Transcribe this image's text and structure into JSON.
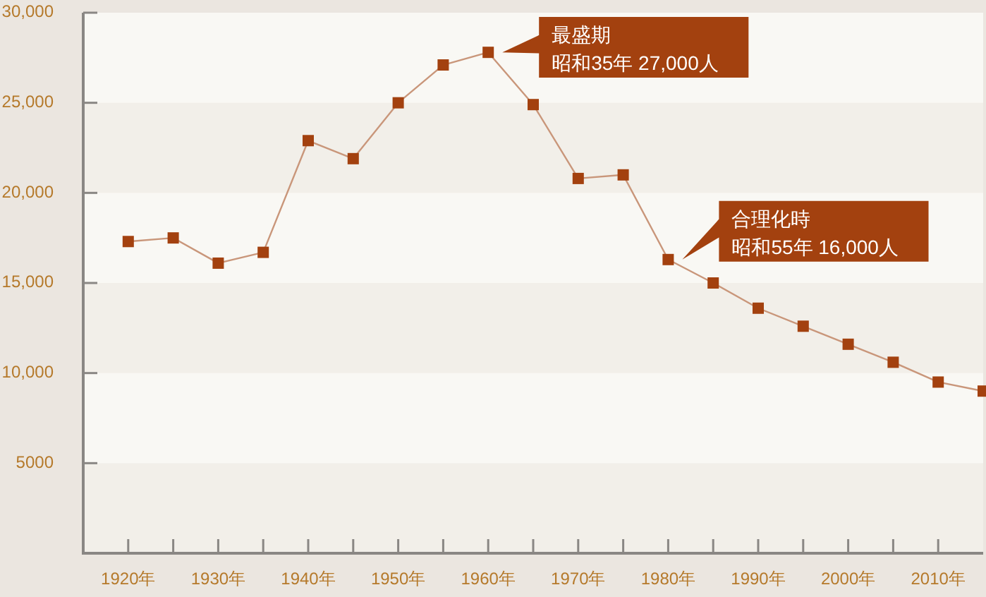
{
  "chart_data": {
    "type": "line",
    "x": [
      1920,
      1925,
      1930,
      1935,
      1940,
      1945,
      1950,
      1955,
      1960,
      1965,
      1970,
      1975,
      1980,
      1985,
      1990,
      1995,
      2000,
      2005,
      2010,
      2015
    ],
    "series": [
      {
        "color": "#a3410f",
        "values": [
          17300,
          17500,
          16100,
          16700,
          22900,
          21900,
          25000,
          27100,
          27800,
          24900,
          20800,
          21000,
          16300,
          15000,
          13600,
          12600,
          11600,
          10600,
          9500,
          9000
        ]
      }
    ],
    "xlim": [
      1915,
      2015
    ],
    "xticks": [
      {
        "value": 1920,
        "label": "1920年"
      },
      {
        "value": 1925,
        "label": null
      },
      {
        "value": 1930,
        "label": "1930年"
      },
      {
        "value": 1935,
        "label": null
      },
      {
        "value": 1940,
        "label": "1940年"
      },
      {
        "value": 1945,
        "label": null
      },
      {
        "value": 1950,
        "label": "1950年"
      },
      {
        "value": 1955,
        "label": null
      },
      {
        "value": 1960,
        "label": "1960年"
      },
      {
        "value": 1965,
        "label": null
      },
      {
        "value": 1970,
        "label": "1970年"
      },
      {
        "value": 1975,
        "label": null
      },
      {
        "value": 1980,
        "label": "1980年"
      },
      {
        "value": 1985,
        "label": null
      },
      {
        "value": 1990,
        "label": "1990年"
      },
      {
        "value": 1995,
        "label": null
      },
      {
        "value": 2000,
        "label": "2000年"
      },
      {
        "value": 2005,
        "label": null
      },
      {
        "value": 2010,
        "label": "2010年"
      }
    ],
    "ylim": [
      0,
      30000
    ],
    "yticks": [
      5000,
      {
        "value": 10000,
        "label": "10,000"
      },
      {
        "value": 15000,
        "label": "15,000"
      },
      {
        "value": 20000,
        "label": "20,000"
      },
      {
        "value": 25000,
        "label": "25,000"
      },
      {
        "value": 30000,
        "label": "30,000"
      }
    ],
    "bands": [
      {
        "axis": "y",
        "from": 0,
        "to": 5000,
        "color": "#f2efe9"
      },
      {
        "axis": "y",
        "from": 10000,
        "to": 15000,
        "color": "#f2efe9"
      },
      {
        "axis": "y",
        "from": 20000,
        "to": 25000,
        "color": "#f2efe9"
      }
    ],
    "marker": "square",
    "line_style": "solid",
    "annotations": [
      "最盛期",
      "昭和35年 27,000人",
      "合理化時",
      "昭和55年 16,000人"
    ]
  }
}
